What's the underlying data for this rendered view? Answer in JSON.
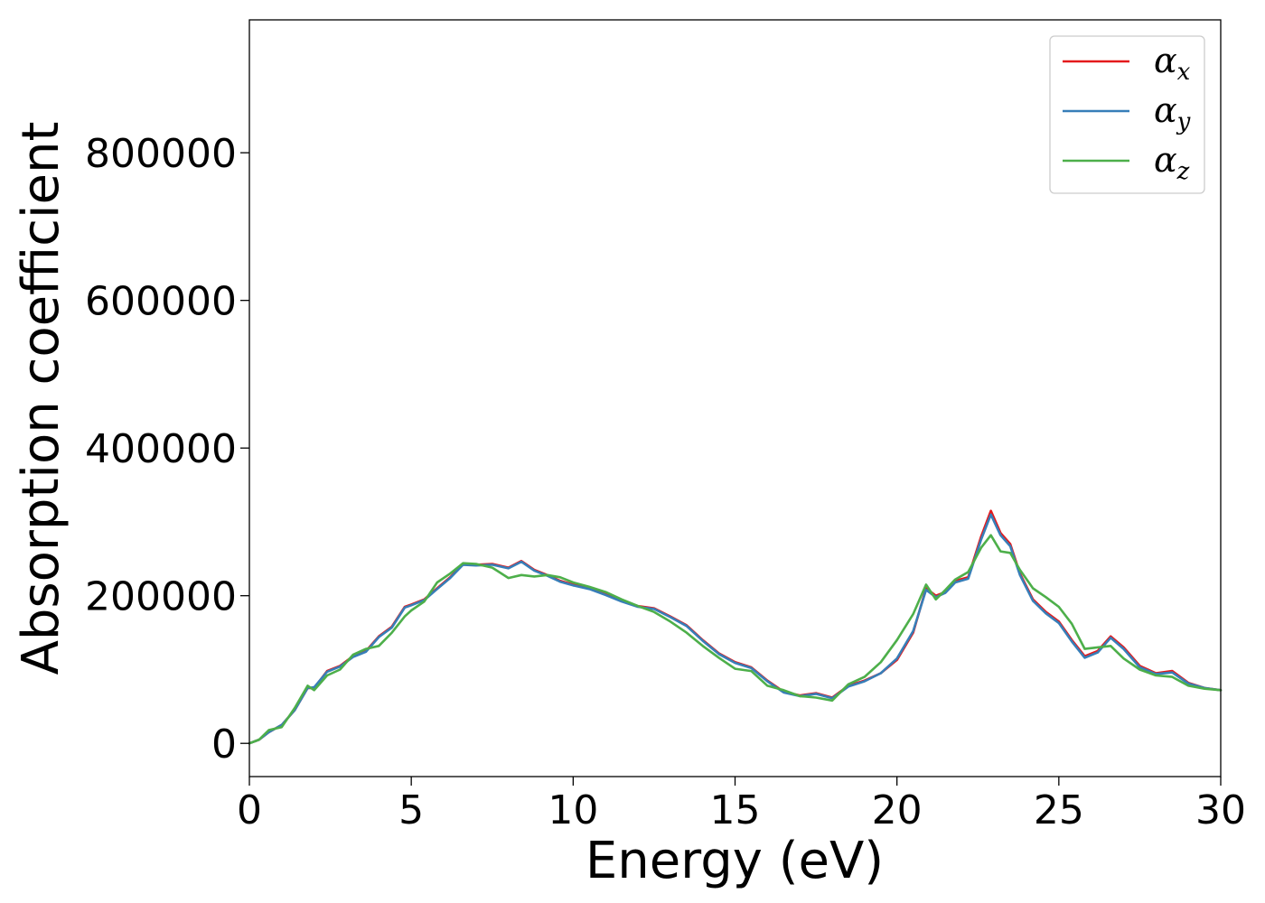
{
  "chart_data": {
    "type": "line",
    "title": "",
    "xlabel": "Energy (eV)",
    "ylabel": "Absorption coefficient",
    "xlim": [
      0,
      30
    ],
    "ylim": [
      -45000,
      980000
    ],
    "xticks": [
      0,
      5,
      10,
      15,
      20,
      25,
      30
    ],
    "xtick_labels": [
      "0",
      "5",
      "10",
      "15",
      "20",
      "25",
      "30"
    ],
    "yticks": [
      0,
      200000,
      400000,
      600000,
      800000
    ],
    "ytick_labels": [
      "0",
      "200000",
      "400000",
      "600000",
      "800000"
    ],
    "grid": false,
    "legend_position": "top-right",
    "series": [
      {
        "name": "αx",
        "symbol": "α",
        "subscript": "x",
        "color": "#e41a1c",
        "x": [
          0,
          0.3,
          0.6,
          1.0,
          1.4,
          1.8,
          2.0,
          2.4,
          2.8,
          3.2,
          3.6,
          4.0,
          4.4,
          4.8,
          5.0,
          5.4,
          5.8,
          6.2,
          6.6,
          7.0,
          7.5,
          8.0,
          8.4,
          8.8,
          9.2,
          9.6,
          10.0,
          10.5,
          11.0,
          11.5,
          12.0,
          12.5,
          13.0,
          13.5,
          14.0,
          14.5,
          15.0,
          15.5,
          16.0,
          16.5,
          17.0,
          17.5,
          18.0,
          18.5,
          19.0,
          19.5,
          20.0,
          20.5,
          20.9,
          21.2,
          21.5,
          21.8,
          22.2,
          22.6,
          22.9,
          23.2,
          23.5,
          23.8,
          24.2,
          24.6,
          25.0,
          25.4,
          25.8,
          26.2,
          26.6,
          27.0,
          27.5,
          28.0,
          28.5,
          29.0,
          29.5,
          30.0
        ],
        "y": [
          0,
          5000,
          15000,
          25000,
          45000,
          75000,
          75000,
          98000,
          105000,
          118000,
          125000,
          145000,
          158000,
          185000,
          188000,
          195000,
          210000,
          225000,
          243000,
          242000,
          243000,
          238000,
          247000,
          235000,
          228000,
          220000,
          215000,
          210000,
          202000,
          193000,
          186000,
          183000,
          172000,
          160000,
          140000,
          122000,
          110000,
          103000,
          85000,
          70000,
          65000,
          68000,
          62000,
          78000,
          85000,
          95000,
          113000,
          150000,
          210000,
          200000,
          205000,
          220000,
          225000,
          280000,
          315000,
          285000,
          270000,
          230000,
          195000,
          178000,
          165000,
          140000,
          118000,
          125000,
          145000,
          130000,
          105000,
          95000,
          98000,
          82000,
          75000,
          72000
        ]
      },
      {
        "name": "αy",
        "symbol": "α",
        "subscript": "y",
        "color": "#377eb8",
        "x": [
          0,
          0.3,
          0.6,
          1.0,
          1.4,
          1.8,
          2.0,
          2.4,
          2.8,
          3.2,
          3.6,
          4.0,
          4.4,
          4.8,
          5.0,
          5.4,
          5.8,
          6.2,
          6.6,
          7.0,
          7.5,
          8.0,
          8.4,
          8.8,
          9.2,
          9.6,
          10.0,
          10.5,
          11.0,
          11.5,
          12.0,
          12.5,
          13.0,
          13.5,
          14.0,
          14.5,
          15.0,
          15.5,
          16.0,
          16.5,
          17.0,
          17.5,
          18.0,
          18.5,
          19.0,
          19.5,
          20.0,
          20.5,
          20.9,
          21.2,
          21.5,
          21.8,
          22.2,
          22.6,
          22.9,
          23.2,
          23.5,
          23.8,
          24.2,
          24.6,
          25.0,
          25.4,
          25.8,
          26.2,
          26.6,
          27.0,
          27.5,
          28.0,
          28.5,
          29.0,
          29.5,
          30.0
        ],
        "y": [
          0,
          5000,
          15000,
          25000,
          45000,
          75000,
          76000,
          97000,
          104000,
          117000,
          124000,
          144000,
          157000,
          184000,
          187000,
          194000,
          209000,
          224000,
          242000,
          241000,
          242000,
          237000,
          246000,
          234000,
          227000,
          219000,
          214000,
          209000,
          201000,
          192000,
          185000,
          182000,
          171000,
          159000,
          139000,
          121000,
          109000,
          102000,
          84000,
          69000,
          64000,
          67000,
          61000,
          77000,
          84000,
          95000,
          115000,
          152000,
          208000,
          198000,
          204000,
          218000,
          223000,
          276000,
          310000,
          282000,
          267000,
          228000,
          193000,
          176000,
          163000,
          138000,
          116000,
          123000,
          143000,
          128000,
          103000,
          94000,
          96000,
          81000,
          75000,
          72000
        ]
      },
      {
        "name": "αz",
        "symbol": "α",
        "subscript": "z",
        "color": "#4daf4a",
        "x": [
          0,
          0.3,
          0.6,
          1.0,
          1.4,
          1.8,
          2.0,
          2.4,
          2.8,
          3.2,
          3.6,
          4.0,
          4.4,
          4.8,
          5.0,
          5.4,
          5.8,
          6.2,
          6.6,
          7.0,
          7.5,
          8.0,
          8.4,
          8.8,
          9.2,
          9.6,
          10.0,
          10.5,
          11.0,
          11.5,
          12.0,
          12.5,
          13.0,
          13.5,
          14.0,
          14.5,
          15.0,
          15.5,
          16.0,
          16.5,
          17.0,
          17.5,
          18.0,
          18.5,
          19.0,
          19.5,
          20.0,
          20.5,
          20.9,
          21.2,
          21.5,
          21.8,
          22.2,
          22.6,
          22.9,
          23.2,
          23.5,
          23.8,
          24.2,
          24.6,
          25.0,
          25.4,
          25.8,
          26.2,
          26.6,
          27.0,
          27.5,
          28.0,
          28.5,
          29.0,
          29.5,
          30.0
        ],
        "y": [
          0,
          5000,
          18000,
          22000,
          48000,
          78000,
          72000,
          92000,
          100000,
          120000,
          128000,
          132000,
          150000,
          172000,
          180000,
          192000,
          218000,
          230000,
          244000,
          243000,
          238000,
          224000,
          228000,
          226000,
          228000,
          225000,
          218000,
          212000,
          205000,
          195000,
          186000,
          178000,
          165000,
          150000,
          132000,
          116000,
          101000,
          98000,
          78000,
          72000,
          64000,
          62000,
          58000,
          80000,
          90000,
          110000,
          140000,
          175000,
          215000,
          195000,
          208000,
          222000,
          232000,
          265000,
          282000,
          260000,
          258000,
          235000,
          210000,
          198000,
          185000,
          162000,
          128000,
          130000,
          132000,
          115000,
          100000,
          92000,
          90000,
          78000,
          74000,
          72000
        ]
      }
    ]
  }
}
